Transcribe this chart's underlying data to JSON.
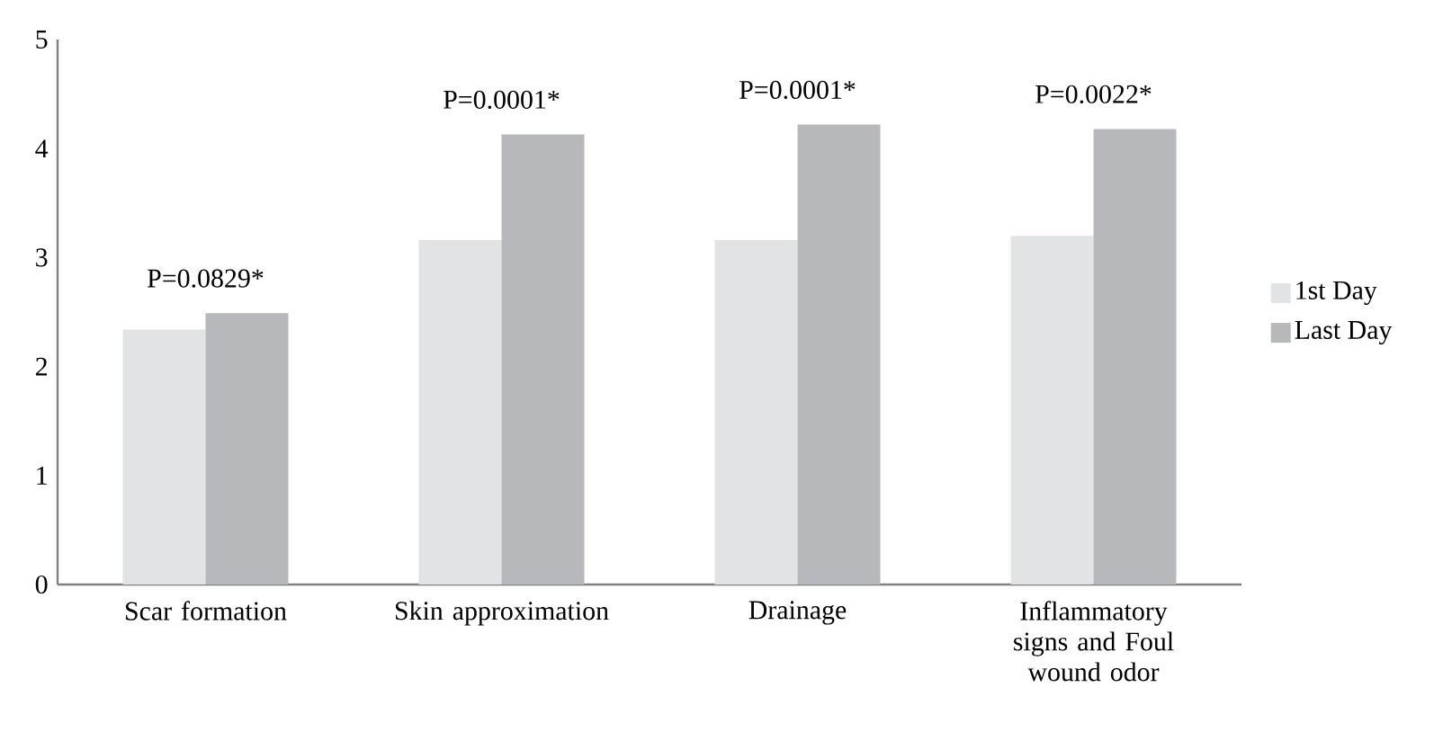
{
  "chart_data": {
    "type": "bar",
    "categories": [
      "Scar formation",
      "Skin approximation",
      "Drainage",
      "Inflammatory signs and Foul wound odor"
    ],
    "series": [
      {
        "name": "1st Day",
        "color": "#e2e3e5",
        "values": [
          2.34,
          3.16,
          3.16,
          3.2
        ]
      },
      {
        "name": "Last Day",
        "color": "#b7b8bb",
        "values": [
          2.49,
          4.13,
          4.22,
          4.18
        ]
      }
    ],
    "annotations": [
      "P=0.0829*",
      "P=0.0001*",
      "P=0.0001*",
      "P=0.0022*"
    ],
    "ylim": [
      0,
      5
    ],
    "yticks": [
      0,
      1,
      2,
      3,
      4,
      5
    ],
    "grid": false,
    "legend": "right"
  }
}
